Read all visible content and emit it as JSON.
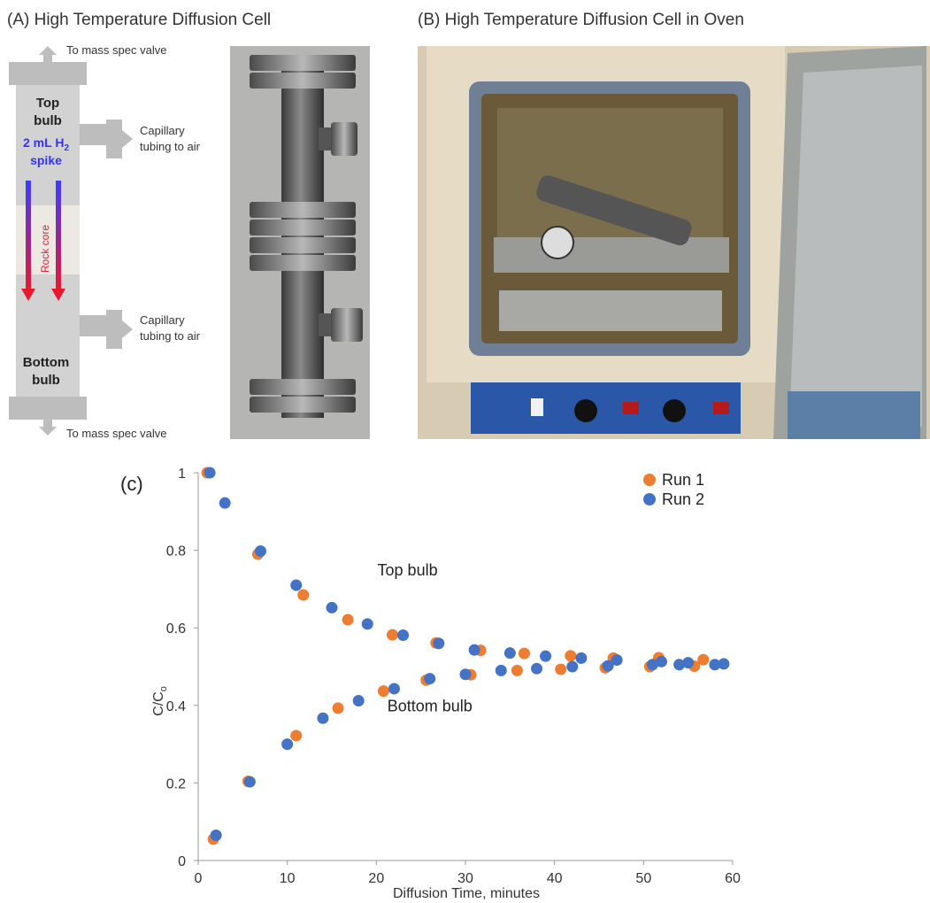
{
  "panel_a": {
    "title": "(A) High Temperature Diffusion Cell",
    "to_mass_spec_top": "To mass spec valve",
    "to_mass_spec_bottom": "To mass spec valve",
    "top_bulb_line1": "Top",
    "top_bulb_line2": "bulb",
    "spike_line1_prefix": "2 mL H",
    "spike_line1_sub": "2",
    "spike_line2": "spike",
    "rock_core": "Rock core",
    "capillary_top_line1": "Capillary",
    "capillary_top_line2": "tubing to air",
    "capillary_bottom_line1": "Capillary",
    "capillary_bottom_line2": "tubing to air",
    "bottom_bulb_line1": "Bottom",
    "bottom_bulb_line2": "bulb",
    "colors": {
      "cell": "#c9c9c9",
      "spike_text": "#3333ff",
      "rock_core_text": "#e0203a",
      "arrow_top": "#3b3bff",
      "arrow_bottom": "#e8192c"
    }
  },
  "panel_b": {
    "title": "(B) High Temperature Diffusion Cell in Oven"
  },
  "panel_c": {
    "label": "(c)"
  },
  "chart_data": {
    "type": "scatter",
    "xlabel": "Diffusion Time, minutes",
    "ylabel_main": "C/C",
    "ylabel_sub": "o",
    "xlim": [
      0,
      60
    ],
    "ylim": [
      0,
      1
    ],
    "xticks": [
      "0",
      "10",
      "20",
      "30",
      "40",
      "50",
      "60"
    ],
    "yticks": [
      "0",
      "0.2",
      "0.4",
      "0.6",
      "0.8",
      "1"
    ],
    "grid": false,
    "legend_position": "top-right",
    "annotations": [
      {
        "text": "Top bulb",
        "x": 23.5,
        "y": 0.735
      },
      {
        "text": "Bottom bulb",
        "x": 26,
        "y": 0.385
      }
    ],
    "series": [
      {
        "name": "Run 1",
        "color": "#ed7d31",
        "x": [
          1,
          1.7,
          5.6,
          6.7,
          11,
          11.8,
          15.7,
          16.8,
          20.8,
          21.8,
          25.6,
          26.7,
          30.6,
          31.7,
          35.8,
          36.6,
          40.7,
          41.8,
          45.7,
          46.6,
          50.7,
          51.7,
          55.7,
          56.7
        ],
        "y": [
          1.0,
          0.055,
          0.204,
          0.79,
          0.322,
          0.685,
          0.393,
          0.621,
          0.437,
          0.582,
          0.465,
          0.561,
          0.479,
          0.542,
          0.49,
          0.534,
          0.493,
          0.528,
          0.497,
          0.522,
          0.5,
          0.523,
          0.501,
          0.518
        ]
      },
      {
        "name": "Run 2",
        "color": "#4472c4",
        "x": [
          1.3,
          2,
          3,
          5.8,
          7,
          10,
          11,
          14,
          15,
          18,
          19,
          22,
          23,
          26,
          27,
          30,
          31,
          34,
          35,
          38,
          39,
          42,
          43,
          46,
          47,
          51,
          52,
          54,
          55,
          58,
          59
        ],
        "y": [
          1.0,
          0.065,
          0.922,
          0.203,
          0.798,
          0.3,
          0.71,
          0.367,
          0.652,
          0.412,
          0.61,
          0.443,
          0.581,
          0.469,
          0.56,
          0.48,
          0.543,
          0.49,
          0.535,
          0.495,
          0.527,
          0.5,
          0.522,
          0.502,
          0.517,
          0.505,
          0.513,
          0.505,
          0.51,
          0.505,
          0.507
        ]
      }
    ]
  }
}
